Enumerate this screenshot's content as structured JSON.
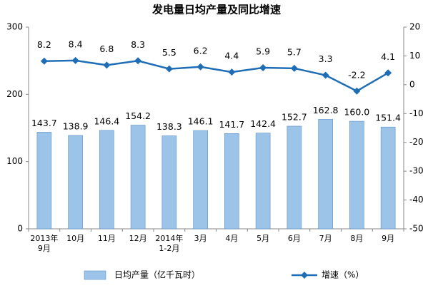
{
  "chart_data": {
    "type": "bar",
    "title": "发电量日均产量及同比增速",
    "categories": [
      "2013年\n9月",
      "10月",
      "11月",
      "12月",
      "2014年\n1-2月",
      "3月",
      "4月",
      "5月",
      "6月",
      "7月",
      "8月",
      "9月"
    ],
    "series": [
      {
        "name": "日均产量（亿千瓦时）",
        "type": "bar",
        "color": "#9cc3e8",
        "values": [
          143.7,
          138.9,
          146.4,
          154.2,
          138.3,
          146.1,
          141.7,
          142.4,
          152.7,
          162.8,
          160.0,
          151.4
        ],
        "value_labels": [
          "143.7",
          "138.9",
          "146.4",
          "154.2",
          "138.3",
          "146.1",
          "141.7",
          "142.4",
          "152.7",
          "162.8",
          "160.0",
          "151.4"
        ]
      },
      {
        "name": "增速（%）",
        "type": "line",
        "axis": "y2",
        "color": "#1f6eb5",
        "values": [
          8.2,
          8.4,
          6.8,
          8.3,
          5.5,
          6.2,
          4.4,
          5.9,
          5.7,
          3.3,
          -2.2,
          4.1
        ]
      }
    ],
    "ylim": [
      0,
      300
    ],
    "yticks": [
      0,
      100,
      200,
      300
    ],
    "y2lim": [
      -50,
      20
    ],
    "y2ticks": [
      -50,
      -40,
      -30,
      -20,
      -10,
      0,
      10,
      20
    ],
    "legend": "bottom"
  }
}
